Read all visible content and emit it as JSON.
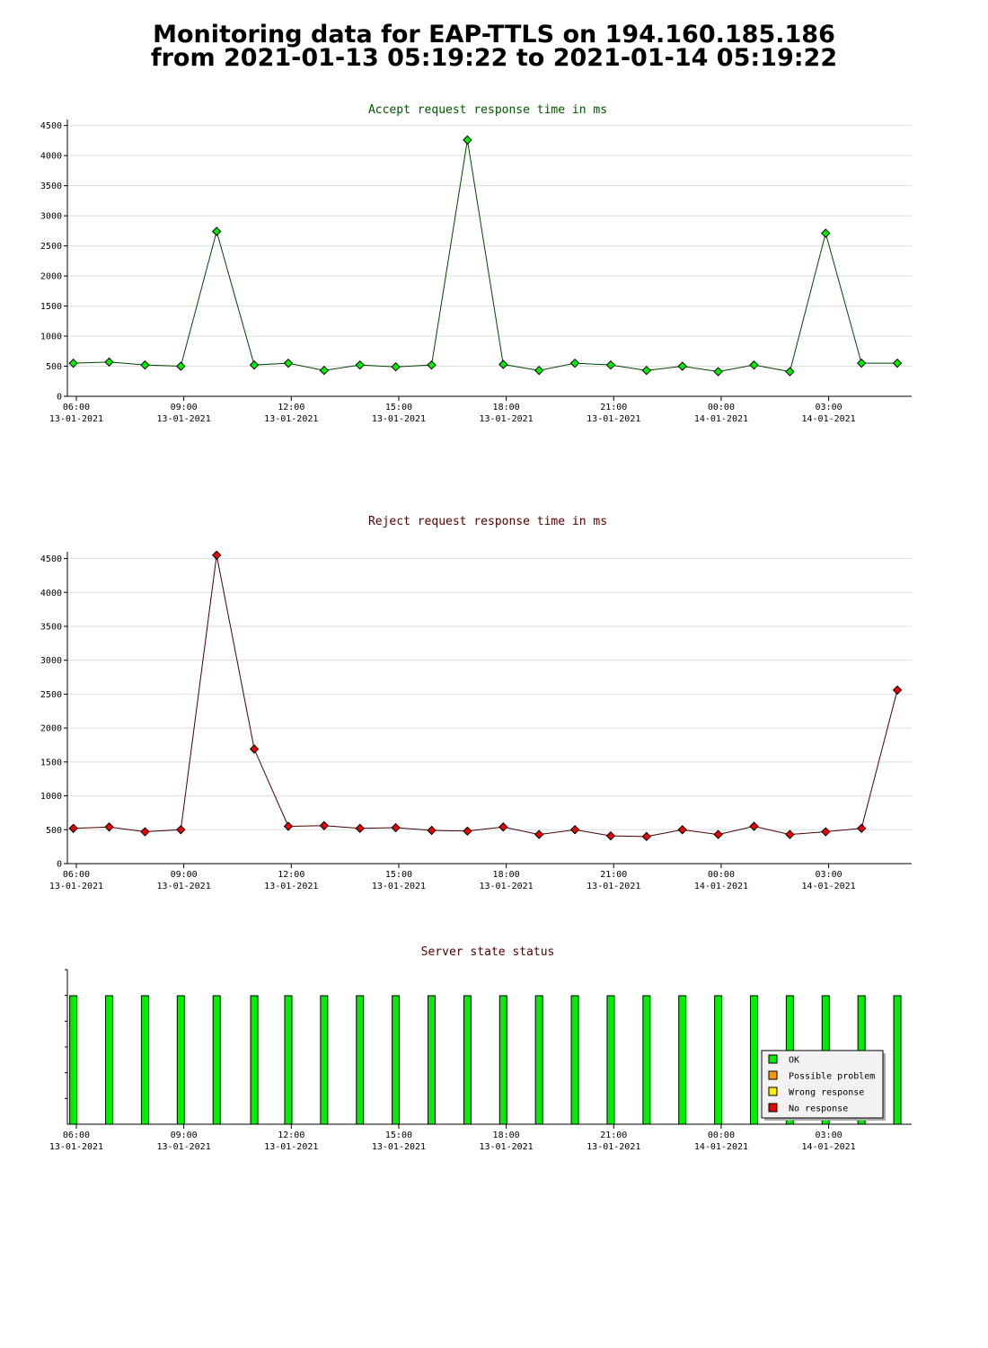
{
  "page": {
    "title_line_1": "Monitoring data for EAP-TTLS on 194.160.185.186",
    "title_line_2": "from 2021-01-13 05:19:22 to 2021-01-14 05:19:22"
  },
  "x_ticks": [
    {
      "time": "06:00",
      "date": "13-01-2021"
    },
    {
      "time": "09:00",
      "date": "13-01-2021"
    },
    {
      "time": "12:00",
      "date": "13-01-2021"
    },
    {
      "time": "15:00",
      "date": "13-01-2021"
    },
    {
      "time": "18:00",
      "date": "13-01-2021"
    },
    {
      "time": "21:00",
      "date": "13-01-2021"
    },
    {
      "time": "00:00",
      "date": "14-01-2021"
    },
    {
      "time": "03:00",
      "date": "14-01-2021"
    }
  ],
  "legend": [
    {
      "label": "OK",
      "color": "#00ee00"
    },
    {
      "label": "Possible problem",
      "color": "#ff9900"
    },
    {
      "label": "Wrong response",
      "color": "#ffee00"
    },
    {
      "label": "No response",
      "color": "#ee0000"
    }
  ],
  "chart_data": [
    {
      "type": "line",
      "title": "Accept request response time in ms",
      "title_color": "#005500",
      "line_color": "#004400",
      "marker_color": "#00ee00",
      "x_range": [
        "2021-01-13 05:45",
        "2021-01-14 05:19"
      ],
      "ylim": [
        0,
        4600
      ],
      "yticks": [
        0,
        500,
        1000,
        1500,
        2000,
        2500,
        3000,
        3500,
        4000,
        4500
      ],
      "grid": true,
      "x": [
        "2021-01-13 05:55",
        "2021-01-13 06:55",
        "2021-01-13 07:55",
        "2021-01-13 08:55",
        "2021-01-13 09:55",
        "2021-01-13 10:58",
        "2021-01-13 11:55",
        "2021-01-13 12:55",
        "2021-01-13 13:55",
        "2021-01-13 14:55",
        "2021-01-13 15:55",
        "2021-01-13 16:55",
        "2021-01-13 17:55",
        "2021-01-13 18:55",
        "2021-01-13 19:55",
        "2021-01-13 20:55",
        "2021-01-13 21:55",
        "2021-01-13 22:55",
        "2021-01-13 23:55",
        "2021-01-14 00:55",
        "2021-01-14 01:55",
        "2021-01-14 02:55",
        "2021-01-14 03:55",
        "2021-01-14 04:55"
      ],
      "values": [
        550,
        570,
        520,
        500,
        2740,
        520,
        550,
        430,
        520,
        490,
        520,
        4260,
        530,
        430,
        550,
        520,
        430,
        500,
        410,
        520,
        410,
        2710,
        550,
        550
      ]
    },
    {
      "type": "line",
      "title": "Reject request response time in ms",
      "title_color": "#550000",
      "line_color": "#440000",
      "marker_color": "#ee0000",
      "x_range": [
        "2021-01-13 05:45",
        "2021-01-14 05:19"
      ],
      "ylim": [
        0,
        4600
      ],
      "yticks": [
        0,
        500,
        1000,
        1500,
        2000,
        2500,
        3000,
        3500,
        4000,
        4500
      ],
      "grid": true,
      "x": [
        "2021-01-13 05:55",
        "2021-01-13 06:55",
        "2021-01-13 07:55",
        "2021-01-13 08:55",
        "2021-01-13 09:55",
        "2021-01-13 10:58",
        "2021-01-13 11:55",
        "2021-01-13 12:55",
        "2021-01-13 13:55",
        "2021-01-13 14:55",
        "2021-01-13 15:55",
        "2021-01-13 16:55",
        "2021-01-13 17:55",
        "2021-01-13 18:55",
        "2021-01-13 19:55",
        "2021-01-13 20:55",
        "2021-01-13 21:55",
        "2021-01-13 22:55",
        "2021-01-13 23:55",
        "2021-01-14 00:55",
        "2021-01-14 01:55",
        "2021-01-14 02:55",
        "2021-01-14 03:55",
        "2021-01-14 04:55"
      ],
      "values": [
        520,
        540,
        470,
        500,
        4550,
        1690,
        550,
        560,
        520,
        530,
        490,
        480,
        540,
        430,
        500,
        410,
        400,
        500,
        430,
        550,
        430,
        470,
        520,
        2560
      ]
    },
    {
      "type": "bar",
      "title": "Server state status",
      "title_color": "#550000",
      "x_range": [
        "2021-01-13 05:45",
        "2021-01-14 05:19"
      ],
      "legend_position": "bottom-right",
      "x": [
        "2021-01-13 05:55",
        "2021-01-13 06:55",
        "2021-01-13 07:55",
        "2021-01-13 08:55",
        "2021-01-13 09:55",
        "2021-01-13 10:58",
        "2021-01-13 11:55",
        "2021-01-13 12:55",
        "2021-01-13 13:55",
        "2021-01-13 14:55",
        "2021-01-13 15:55",
        "2021-01-13 16:55",
        "2021-01-13 17:55",
        "2021-01-13 18:55",
        "2021-01-13 19:55",
        "2021-01-13 20:55",
        "2021-01-13 21:55",
        "2021-01-13 22:55",
        "2021-01-13 23:55",
        "2021-01-14 00:55",
        "2021-01-14 01:55",
        "2021-01-14 02:55",
        "2021-01-14 03:55",
        "2021-01-14 04:55"
      ],
      "states": [
        "OK",
        "OK",
        "OK",
        "OK",
        "OK",
        "OK",
        "OK",
        "OK",
        "OK",
        "OK",
        "OK",
        "OK",
        "OK",
        "OK",
        "OK",
        "OK",
        "OK",
        "OK",
        "OK",
        "OK",
        "OK",
        "OK",
        "OK",
        "OK"
      ]
    }
  ]
}
